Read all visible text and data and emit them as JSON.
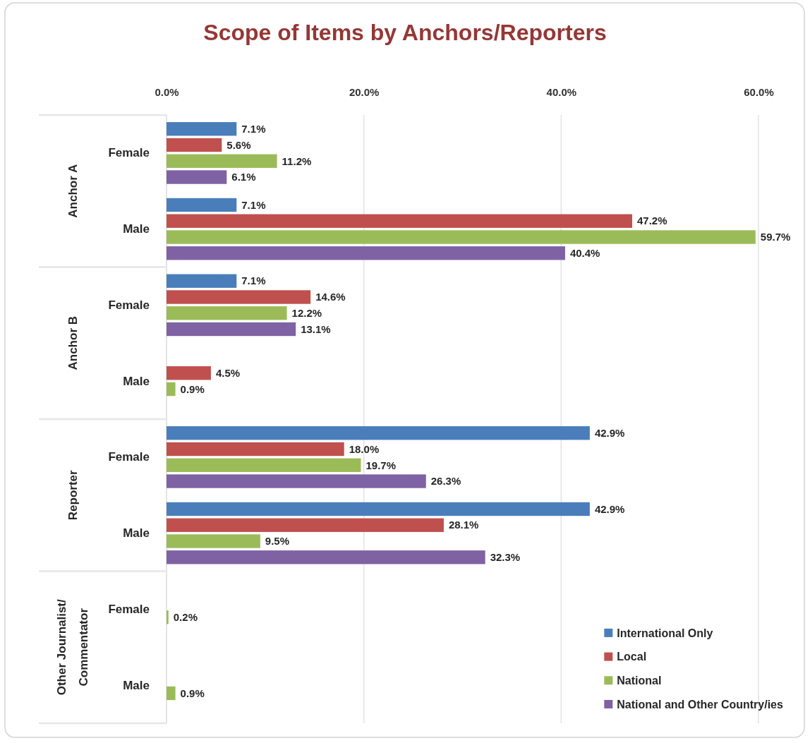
{
  "chart_data": {
    "type": "bar",
    "orientation": "horizontal",
    "title": "Scope of Items by Anchors/Reporters",
    "categories": [
      "Female",
      "Male",
      "Female",
      "Male",
      "Female",
      "Male",
      "Female",
      "Male"
    ],
    "annotations": [
      "Anchor A",
      "Anchor B",
      "Reporter",
      "Other Journalist/ Commentator"
    ],
    "series": [
      {
        "name": "International Only",
        "color": "#4a7ebb",
        "values": [
          7.1,
          7.1,
          7.1,
          null,
          42.9,
          42.9,
          null,
          null
        ],
        "value_labels": [
          "7.1%",
          "7.1%",
          "7.1%",
          null,
          "42.9%",
          "42.9%",
          null,
          null
        ]
      },
      {
        "name": "Local",
        "color": "#c0504d",
        "values": [
          5.6,
          47.2,
          14.6,
          4.5,
          18.0,
          28.1,
          null,
          null
        ],
        "value_labels": [
          "5.6%",
          "47.2%",
          "14.6%",
          "4.5%",
          "18.0%",
          "28.1%",
          null,
          null
        ]
      },
      {
        "name": "National",
        "color": "#9bbb59",
        "values": [
          11.2,
          59.7,
          12.2,
          0.9,
          19.7,
          9.5,
          0.2,
          0.9
        ],
        "value_labels": [
          "11.2%",
          "59.7%",
          "12.2%",
          "0.9%",
          "19.7%",
          "9.5%",
          "0.2%",
          "0.9%"
        ]
      },
      {
        "name": "National and Other Country/ies",
        "color": "#7f62a3",
        "values": [
          6.1,
          40.4,
          13.1,
          null,
          26.3,
          32.3,
          null,
          null
        ],
        "value_labels": [
          "6.1%",
          "40.4%",
          "13.1%",
          null,
          "26.3%",
          "32.3%",
          null,
          null
        ]
      }
    ],
    "xlim": [
      0,
      60
    ],
    "xticks": [
      {
        "value": 0,
        "label": "0.0%"
      },
      {
        "value": 20,
        "label": "20.0%"
      },
      {
        "value": 40,
        "label": "40.0%"
      },
      {
        "value": 60,
        "label": "60.0%"
      }
    ],
    "grid": "x",
    "legend": "bottom right"
  }
}
